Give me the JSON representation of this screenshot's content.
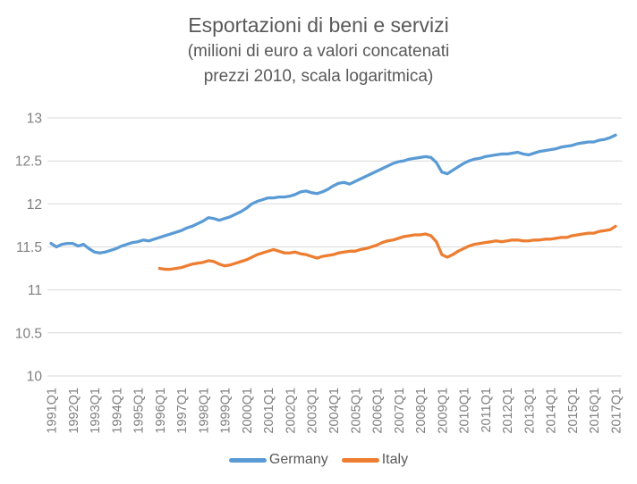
{
  "chart_data": {
    "type": "line",
    "title": "Esportazioni di beni e servizi",
    "subtitle_lines": [
      "(milioni di euro a valori concatenati",
      "prezzi 2010, scala logaritmica)"
    ],
    "ylim": [
      10,
      13
    ],
    "y_tick_values": [
      13,
      12.5,
      12,
      11.5,
      11,
      10.5,
      10
    ],
    "y_tick_labels": [
      "13",
      "12.5",
      "12",
      "11.5",
      "11",
      "10.5",
      "10"
    ],
    "x_tick_labels": [
      "1991Q1",
      "1992Q1",
      "1993Q1",
      "1994Q1",
      "1995Q1",
      "1996Q1",
      "1997Q1",
      "1998Q1",
      "1999Q1",
      "2000Q1",
      "2001Q1",
      "2002Q1",
      "2003Q1",
      "2004Q1",
      "2005Q1",
      "2006Q1",
      "2007Q1",
      "2008Q1",
      "2009Q1",
      "2010Q1",
      "2011Q1",
      "2012Q1",
      "2013Q1",
      "2014Q1",
      "2015Q1",
      "2016Q1",
      "2017Q1"
    ],
    "x_tick_step_quarters": 4,
    "grid": true,
    "legend_position": "bottom",
    "colors": {
      "germany": "#5B9BD5",
      "italy": "#ED7D31",
      "grid": "#D9D9D9",
      "axis_text": "#7F7F7F",
      "title_text": "#595959"
    },
    "series": [
      {
        "name": "Germany",
        "color_key": "germany",
        "start": "1991Q1",
        "values": [
          11.54,
          11.5,
          11.53,
          11.54,
          11.54,
          11.51,
          11.53,
          11.48,
          11.44,
          11.43,
          11.44,
          11.46,
          11.48,
          11.51,
          11.53,
          11.55,
          11.56,
          11.58,
          11.57,
          11.59,
          11.61,
          11.63,
          11.65,
          11.67,
          11.69,
          11.72,
          11.74,
          11.77,
          11.8,
          11.84,
          11.83,
          11.81,
          11.83,
          11.85,
          11.88,
          11.91,
          11.95,
          12.0,
          12.03,
          12.05,
          12.07,
          12.07,
          12.08,
          12.08,
          12.09,
          12.11,
          12.14,
          12.15,
          12.13,
          12.12,
          12.14,
          12.17,
          12.21,
          12.24,
          12.25,
          12.23,
          12.26,
          12.29,
          12.32,
          12.35,
          12.38,
          12.41,
          12.44,
          12.47,
          12.49,
          12.5,
          12.52,
          12.53,
          12.54,
          12.55,
          12.54,
          12.48,
          12.37,
          12.35,
          12.39,
          12.43,
          12.47,
          12.5,
          12.52,
          12.53,
          12.55,
          12.56,
          12.57,
          12.58,
          12.58,
          12.59,
          12.6,
          12.58,
          12.57,
          12.59,
          12.61,
          12.62,
          12.63,
          12.64,
          12.66,
          12.67,
          12.68,
          12.7,
          12.71,
          12.72,
          12.72,
          12.74,
          12.75,
          12.77,
          12.8
        ]
      },
      {
        "name": "Italy",
        "color_key": "italy",
        "start": "1996Q1",
        "values": [
          11.25,
          11.24,
          11.24,
          11.25,
          11.26,
          11.28,
          11.3,
          11.31,
          11.32,
          11.34,
          11.33,
          11.3,
          11.28,
          11.29,
          11.31,
          11.33,
          11.35,
          11.38,
          11.41,
          11.43,
          11.45,
          11.47,
          11.45,
          11.43,
          11.43,
          11.44,
          11.42,
          11.41,
          11.39,
          11.37,
          11.39,
          11.4,
          11.41,
          11.43,
          11.44,
          11.45,
          11.45,
          11.47,
          11.48,
          11.5,
          11.52,
          11.55,
          11.57,
          11.58,
          11.6,
          11.62,
          11.63,
          11.64,
          11.64,
          11.65,
          11.63,
          11.56,
          11.41,
          11.38,
          11.41,
          11.45,
          11.48,
          11.51,
          11.53,
          11.54,
          11.55,
          11.56,
          11.57,
          11.56,
          11.57,
          11.58,
          11.58,
          11.57,
          11.57,
          11.58,
          11.58,
          11.59,
          11.59,
          11.6,
          11.61,
          11.61,
          11.63,
          11.64,
          11.65,
          11.66,
          11.66,
          11.68,
          11.69,
          11.7,
          11.74
        ]
      }
    ]
  }
}
